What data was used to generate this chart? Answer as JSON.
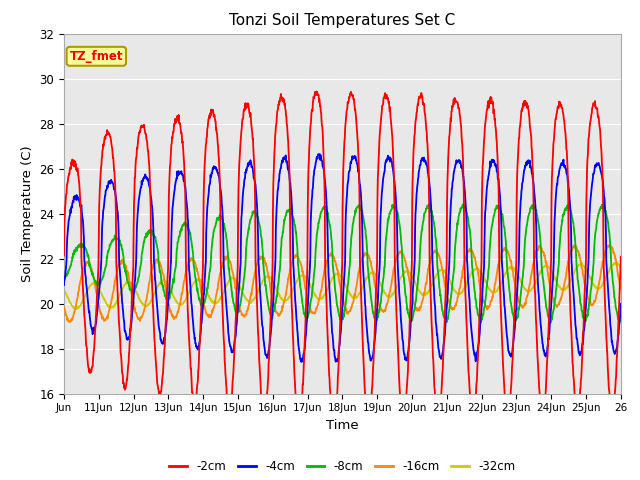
{
  "title": "Tonzi Soil Temperatures Set C",
  "xlabel": "Time",
  "ylabel": "Soil Temperature (C)",
  "ylim": [
    16,
    32
  ],
  "yticks": [
    16,
    18,
    20,
    22,
    24,
    26,
    28,
    30,
    32
  ],
  "xtick_labels": [
    "Jun",
    "11Jun",
    "12Jun",
    "13Jun",
    "14Jun",
    "15Jun",
    "16Jun",
    "17Jun",
    "18Jun",
    "19Jun",
    "20Jun",
    "21Jun",
    "22Jun",
    "23Jun",
    "24Jun",
    "25Jun",
    "26"
  ],
  "series_colors": [
    "#ff0000",
    "#0000ff",
    "#00bb00",
    "#ff8800",
    "#cccc00"
  ],
  "series_labels": [
    "-2cm",
    "-4cm",
    "-8cm",
    "-16cm",
    "-32cm"
  ],
  "bg_color": "#e8e8e8",
  "annotation_text": "TZ_fmet",
  "annotation_bg": "#ffff99",
  "annotation_border": "#aa9900",
  "n_days": 16,
  "samples_per_day": 96,
  "base_temp": 22.0,
  "amp_2cm": 5.5,
  "amp_4cm": 4.0,
  "amp_8cm": 2.2,
  "amp_16cm": 1.3,
  "amp_32cm": 0.55,
  "phase_2cm": 0.0,
  "phase_4cm": 0.08,
  "phase_8cm": 0.22,
  "phase_16cm": 0.42,
  "phase_32cm": 0.6,
  "trend_2cm": 0.0,
  "trend_4cm": 0.0,
  "trend_8cm": 0.0,
  "trend_16cm": 0.05,
  "trend_32cm": 0.06,
  "base_2cm": 22.0,
  "base_4cm": 22.0,
  "base_8cm": 21.8,
  "base_16cm": 20.5,
  "base_32cm": 20.3,
  "sharpness": 3.0
}
